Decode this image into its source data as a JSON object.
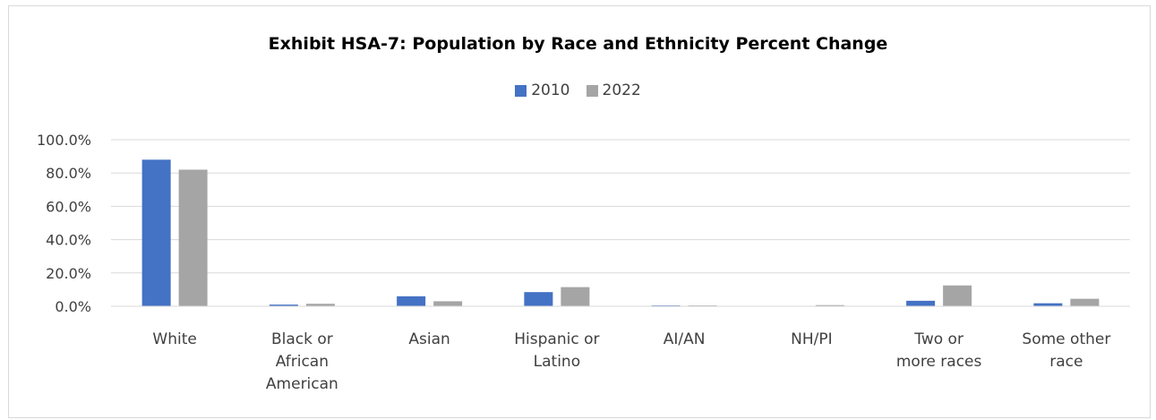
{
  "chart_data": {
    "type": "bar",
    "title": "Exhibit HSA-7: Population by Race and Ethnicity Percent Change",
    "categories": [
      [
        "White"
      ],
      [
        "Black or",
        "African",
        "American"
      ],
      [
        "Asian"
      ],
      [
        "Hispanic or",
        "Latino"
      ],
      [
        "AI/AN"
      ],
      [
        "NH/PI"
      ],
      [
        "Two or",
        "more races"
      ],
      [
        "Some other",
        "race"
      ]
    ],
    "series": [
      {
        "name": "2010",
        "color": "#4472c4",
        "values": [
          88.0,
          1.0,
          6.0,
          8.5,
          0.5,
          0.2,
          3.3,
          1.8
        ]
      },
      {
        "name": "2022",
        "color": "#a5a5a5",
        "values": [
          82.0,
          1.5,
          3.0,
          11.5,
          0.5,
          0.7,
          12.5,
          4.5
        ]
      }
    ],
    "ylim": [
      0,
      100
    ],
    "yticks": [
      "0.0%",
      "20.0%",
      "40.0%",
      "60.0%",
      "80.0%",
      "100.0%"
    ],
    "grid": true,
    "legend_position": "top"
  }
}
